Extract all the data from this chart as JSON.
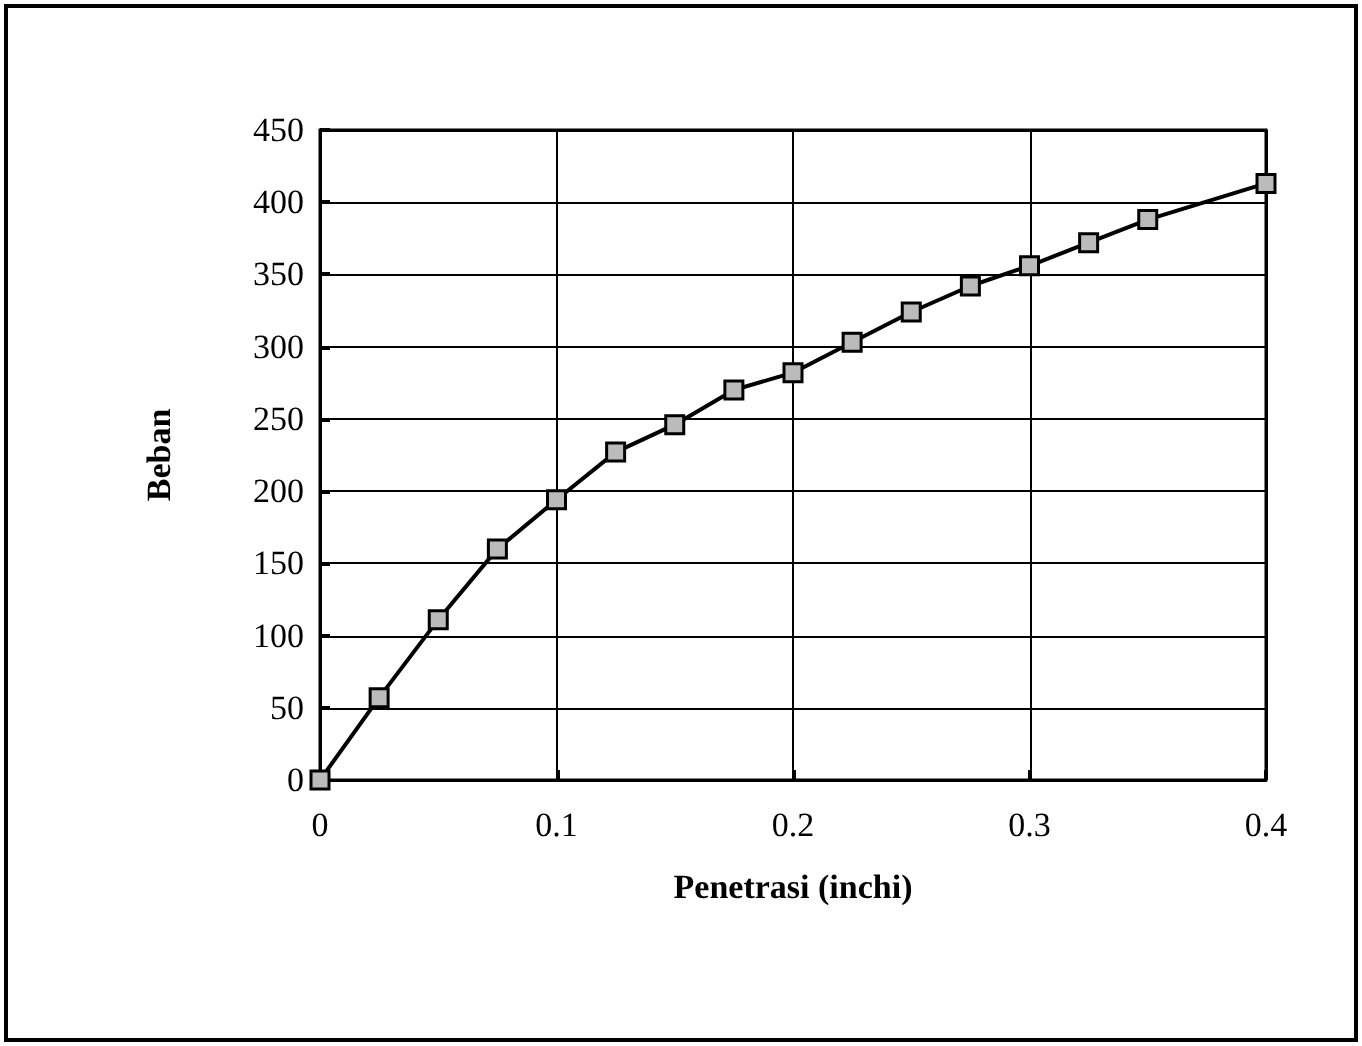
{
  "chart_data": {
    "type": "line",
    "xlabel": "Penetrasi (inchi)",
    "ylabel": "Beban",
    "x": [
      0,
      0.025,
      0.05,
      0.075,
      0.1,
      0.125,
      0.15,
      0.175,
      0.2,
      0.225,
      0.25,
      0.275,
      0.3,
      0.325,
      0.35,
      0.4
    ],
    "series": [
      {
        "color": "#000000",
        "values": [
          0,
          57,
          111,
          160,
          194,
          227,
          246,
          270,
          282,
          303,
          324,
          342,
          356,
          372,
          388,
          413
        ]
      }
    ],
    "xlim": [
      0,
      0.4
    ],
    "xticks": [
      0,
      0.1,
      0.2,
      0.3,
      0.4
    ],
    "ylim": [
      0,
      450
    ],
    "yticks": [
      0,
      50,
      100,
      150,
      200,
      250,
      300,
      350,
      400,
      450
    ],
    "grid": true,
    "marker": "square",
    "line_style": "solid"
  }
}
